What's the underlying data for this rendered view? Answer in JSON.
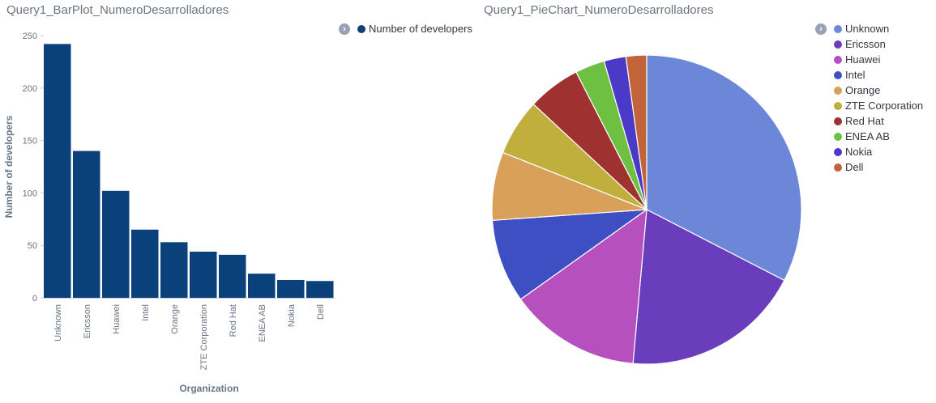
{
  "colors": {
    "bar": "#0b417b",
    "axis_text": "#6a7683",
    "pie": [
      "#6d87d8",
      "#6a3dbc",
      "#b550be",
      "#3e4fc3",
      "#d9a05a",
      "#c0ae3d",
      "#a03131",
      "#6ec042",
      "#4b3ac7",
      "#c2633a"
    ]
  },
  "legend_toggle_icon": "chevron-right-icon",
  "chart_data": [
    {
      "type": "bar",
      "title": "Query1_BarPlot_NumeroDesarrolladores",
      "xlabel": "Organization",
      "ylabel": "Number of developers",
      "categories": [
        "Unknown",
        "Ericsson",
        "Huawei",
        "Intel",
        "Orange",
        "ZTE Corporation",
        "Red Hat",
        "ENEA AB",
        "Nokia",
        "Dell"
      ],
      "series": [
        {
          "name": "Number of developers",
          "values": [
            242,
            140,
            102,
            65,
            53,
            44,
            41,
            23,
            17,
            16
          ]
        }
      ],
      "ylim": [
        0,
        250
      ],
      "yticks": [
        0,
        50,
        100,
        150,
        200,
        250
      ],
      "legend": "top-right",
      "grid": false
    },
    {
      "type": "pie",
      "title": "Query1_PieChart_NumeroDesarrolladores",
      "labels": [
        "Unknown",
        "Ericsson",
        "Huawei",
        "Intel",
        "Orange",
        "ZTE Corporation",
        "Red Hat",
        "ENEA AB",
        "Nokia",
        "Dell"
      ],
      "values": [
        242,
        140,
        102,
        65,
        53,
        44,
        41,
        23,
        17,
        16
      ],
      "legend": "right"
    }
  ]
}
